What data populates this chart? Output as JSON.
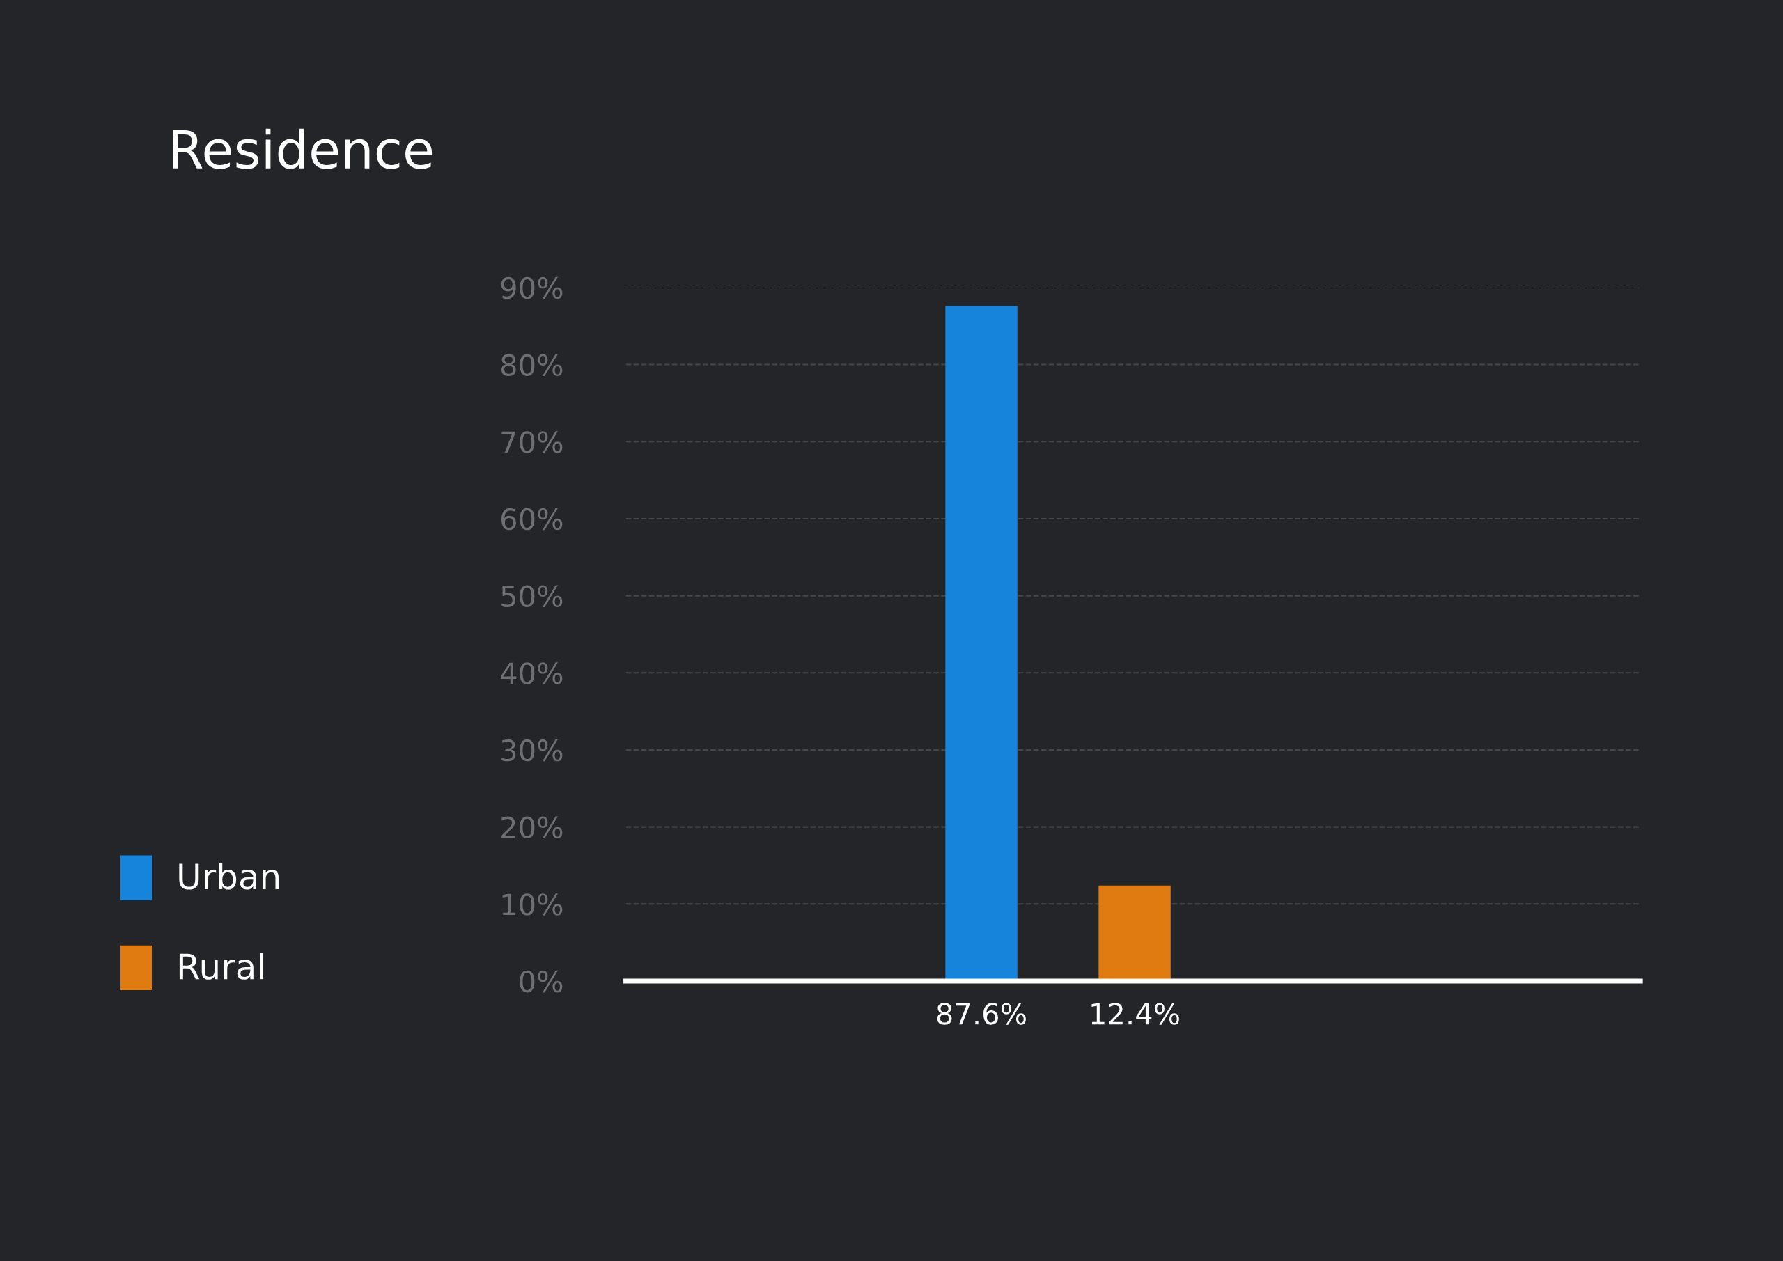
{
  "chart_data": {
    "type": "bar",
    "title": "Residence",
    "categories": [
      null,
      null
    ],
    "series": [
      {
        "name": "Urban",
        "color": "#1784dc",
        "values": [
          87.6,
          null
        ]
      },
      {
        "name": "Rural",
        "color": "#e07b12",
        "values": [
          null,
          12.4
        ]
      }
    ],
    "ylim": [
      0,
      90
    ],
    "yticks": [
      {
        "value": 0,
        "label": "0%"
      },
      {
        "value": 10,
        "label": "10%"
      },
      {
        "value": 20,
        "label": "20%"
      },
      {
        "value": 30,
        "label": "30%"
      },
      {
        "value": 40,
        "label": "40%"
      },
      {
        "value": 50,
        "label": "50%"
      },
      {
        "value": 60,
        "label": "60%"
      },
      {
        "value": 70,
        "label": "70%"
      },
      {
        "value": 80,
        "label": "80%"
      },
      {
        "value": 90,
        "label": "90%"
      }
    ],
    "value_labels": [
      "87.6%",
      "12.4%"
    ],
    "grid": "y",
    "legend": "left"
  }
}
